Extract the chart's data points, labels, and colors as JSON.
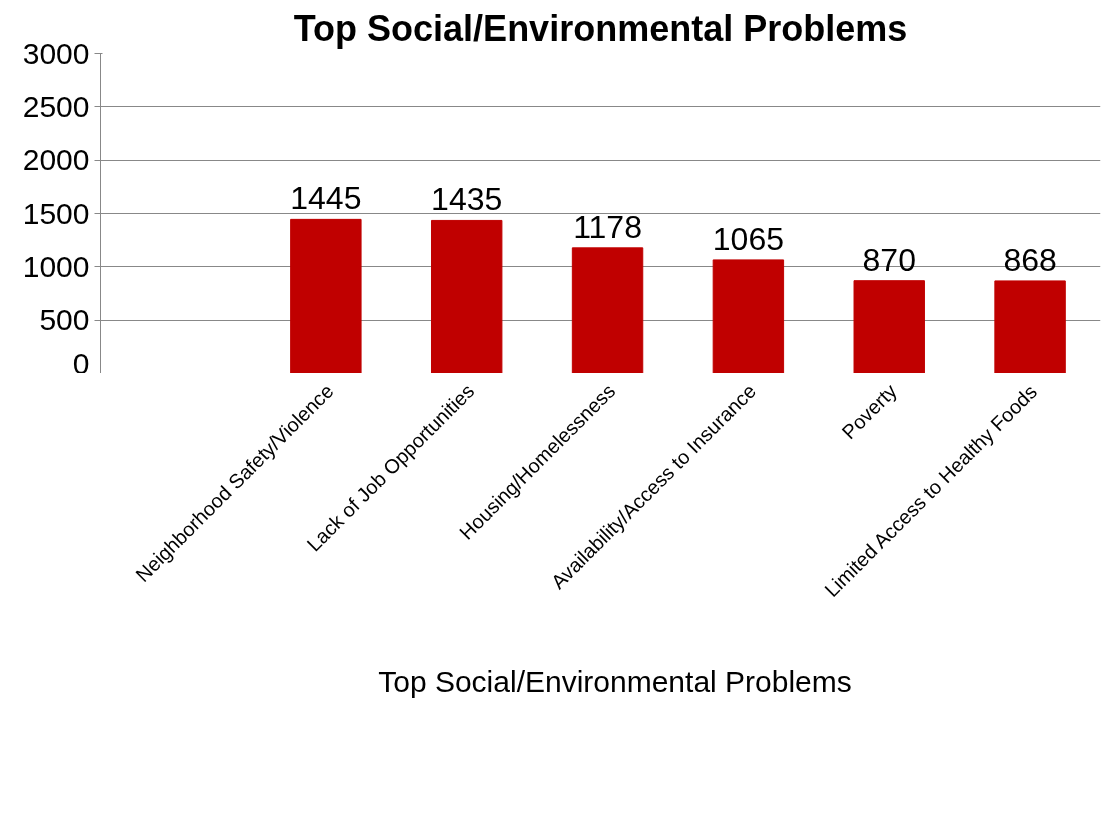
{
  "chart_data": {
    "type": "bar",
    "title": "Top Social/Environmental Problems",
    "categories": [
      "Neighborhood Safety/Violence",
      "Lack of Job Opportunities",
      "Housing/Homelessness",
      "Availability/Access to Insurance",
      "Poverty",
      "Limited Access to Healthy Foods"
    ],
    "series": [
      {
        "name": "Top Social/Environmental Problems",
        "color": "#c00000",
        "values": [
          1445,
          1435,
          1178,
          1065,
          870,
          868
        ]
      }
    ],
    "ylim": [
      0,
      3000
    ],
    "yticks": [
      0,
      500,
      1000,
      1500,
      2000,
      2500,
      3000
    ],
    "grid": "y",
    "legend": "bottom",
    "data_labels": true
  }
}
